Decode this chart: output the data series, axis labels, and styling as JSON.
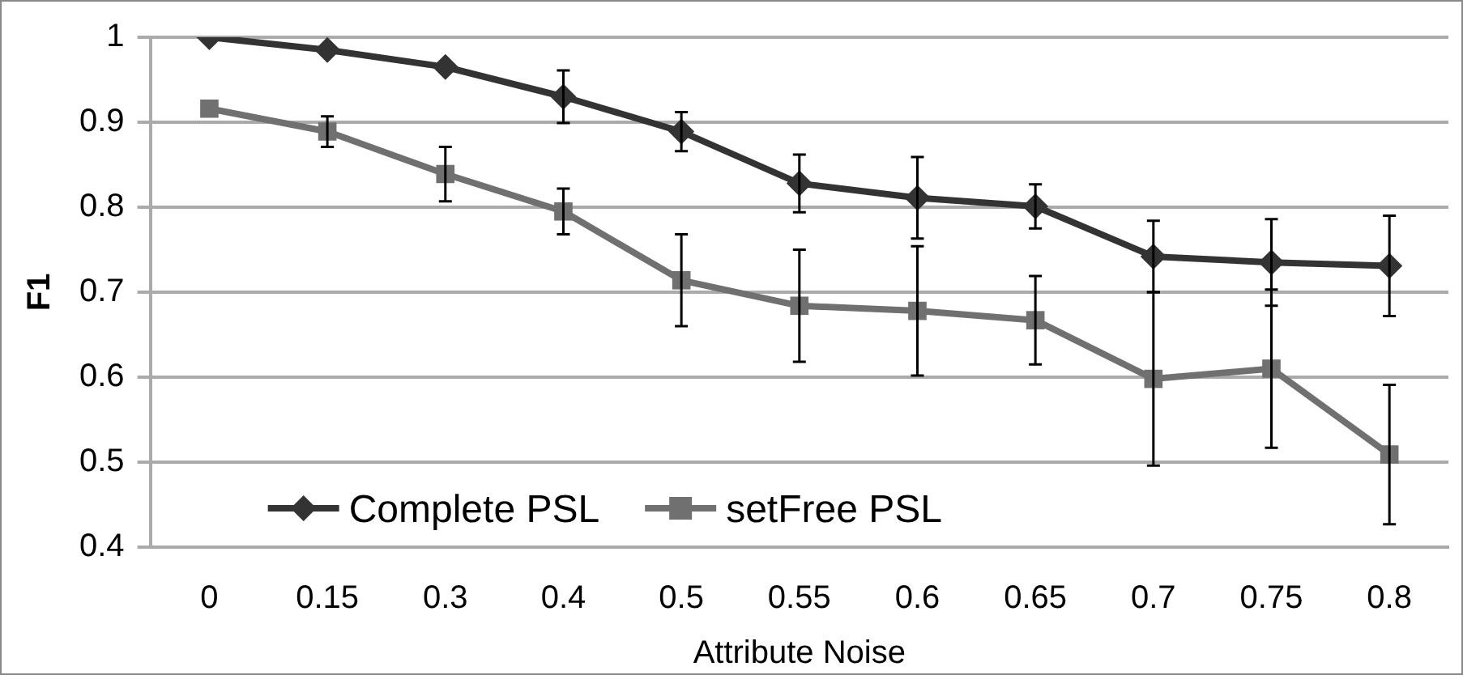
{
  "chart_data": {
    "type": "line",
    "xlabel": "Attribute Noise",
    "ylabel": "F1",
    "categories": [
      "0",
      "0.15",
      "0.3",
      "0.4",
      "0.5",
      "0.55",
      "0.6",
      "0.65",
      "0.7",
      "0.75",
      "0.8"
    ],
    "series": [
      {
        "name": "Complete PSL",
        "color": "#333333",
        "marker": "diamond",
        "values": [
          1.0,
          0.985,
          0.965,
          0.93,
          0.889,
          0.828,
          0.811,
          0.801,
          0.742,
          0.735,
          0.731
        ],
        "errors": [
          null,
          null,
          null,
          0.031,
          0.023,
          0.034,
          0.048,
          0.026,
          0.042,
          0.051,
          0.059
        ]
      },
      {
        "name": "setFree PSL",
        "color": "#707070",
        "marker": "square",
        "values": [
          0.916,
          0.889,
          0.839,
          0.795,
          0.714,
          0.684,
          0.678,
          0.667,
          0.598,
          0.61,
          0.509
        ],
        "errors": [
          null,
          0.018,
          0.032,
          0.027,
          0.054,
          0.066,
          0.076,
          0.052,
          0.102,
          0.093,
          0.082
        ]
      }
    ],
    "ylim": [
      0.4,
      1
    ],
    "yticks": [
      0.4,
      0.5,
      0.6,
      0.7,
      0.8,
      0.9,
      1
    ],
    "grid": "y",
    "legend": "bottom"
  }
}
